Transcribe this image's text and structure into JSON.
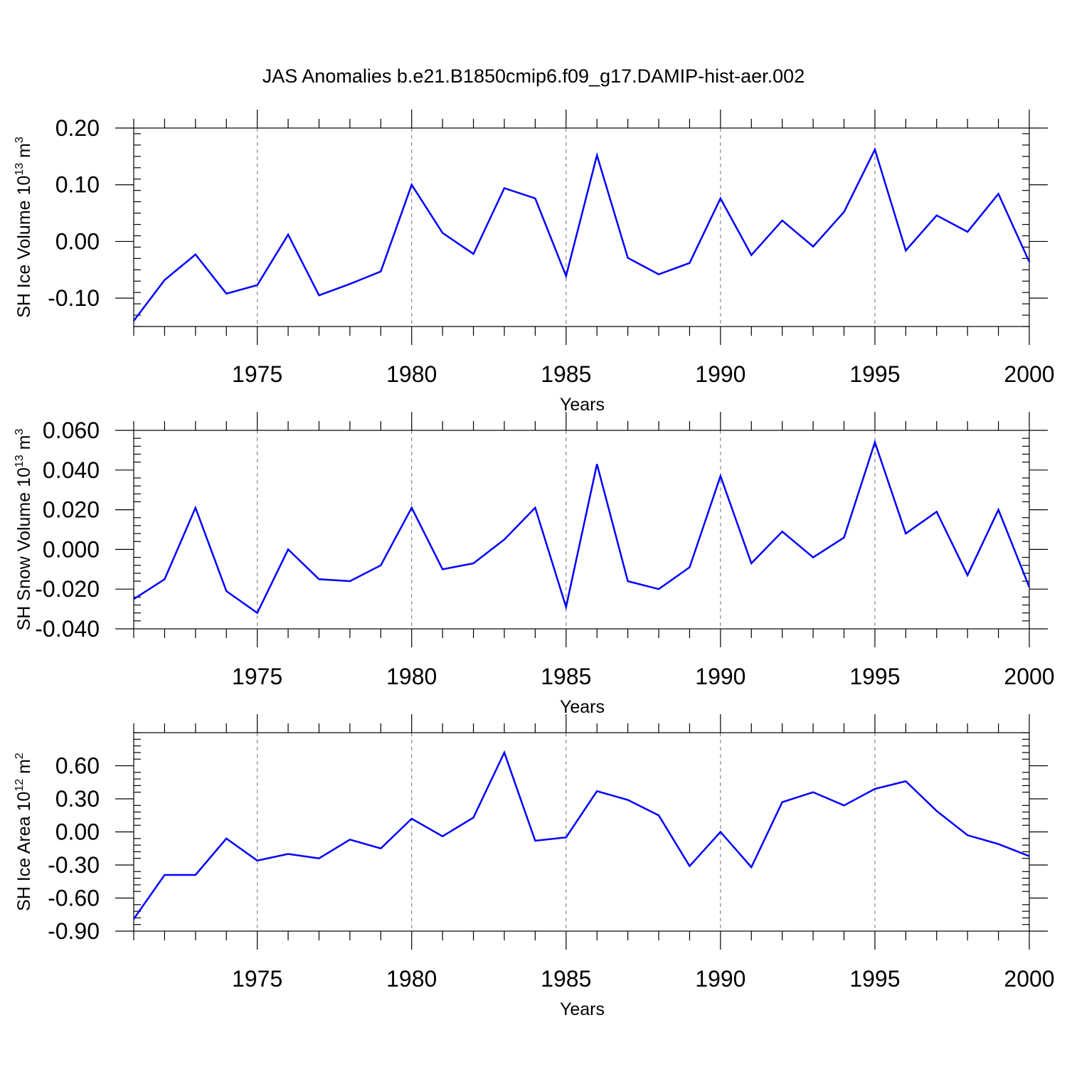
{
  "colors": {
    "series": "#0000ff",
    "axis": "#000000",
    "grid": "#888888",
    "background": "#ffffff"
  },
  "chart_data": [
    {
      "type": "line",
      "title": "JAS Anomalies b.e21.B1850cmip6.f09_g17.DAMIP-hist-aer.002",
      "ylabel": "SH Ice Volume 10",
      "ylabel_exp": "13",
      "ylabel_unit": " m",
      "ylabel_unit_exp": "3",
      "xlabel": "Years",
      "xlim": [
        1971,
        2000
      ],
      "ylim": [
        -0.15,
        0.2
      ],
      "yticks": [
        0.2,
        0.1,
        0.0,
        -0.1
      ],
      "yticklabels": [
        "0.20",
        "0.10",
        "0.00",
        "-0.10"
      ],
      "xticks": [
        1975,
        1980,
        1985,
        1990,
        1995,
        2000
      ],
      "xticklabels": [
        "1975",
        "1980",
        "1985",
        "1990",
        "1995",
        "2000"
      ],
      "grid_x": [
        1975,
        1980,
        1985,
        1990,
        1995
      ],
      "x": [
        1971,
        1972,
        1973,
        1974,
        1975,
        1976,
        1977,
        1978,
        1979,
        1980,
        1981,
        1982,
        1983,
        1984,
        1985,
        1986,
        1987,
        1988,
        1989,
        1990,
        1991,
        1992,
        1993,
        1994,
        1995,
        1996,
        1997,
        1998,
        1999,
        2000
      ],
      "series": [
        {
          "name": "SH Ice Volume",
          "values": [
            -0.14,
            -0.068,
            -0.023,
            -0.092,
            -0.077,
            0.012,
            -0.095,
            -0.075,
            -0.053,
            0.1,
            0.015,
            -0.022,
            0.094,
            0.076,
            -0.061,
            0.152,
            -0.029,
            -0.058,
            -0.038,
            0.076,
            -0.024,
            0.037,
            -0.009,
            0.052,
            0.162,
            -0.016,
            0.046,
            0.017,
            0.084,
            -0.036
          ]
        }
      ]
    },
    {
      "type": "line",
      "ylabel": "SH Snow Volume 10",
      "ylabel_exp": "13",
      "ylabel_unit": " m",
      "ylabel_unit_exp": "3",
      "xlabel": "Years",
      "xlim": [
        1971,
        2000
      ],
      "ylim": [
        -0.04,
        0.06
      ],
      "yticks": [
        0.06,
        0.04,
        0.02,
        0.0,
        -0.02,
        -0.04
      ],
      "yticklabels": [
        "0.060",
        "0.040",
        "0.020",
        "0.000",
        "-0.020",
        "-0.040"
      ],
      "xticks": [
        1975,
        1980,
        1985,
        1990,
        1995,
        2000
      ],
      "xticklabels": [
        "1975",
        "1980",
        "1985",
        "1990",
        "1995",
        "2000"
      ],
      "grid_x": [
        1975,
        1980,
        1985,
        1990,
        1995
      ],
      "x": [
        1971,
        1972,
        1973,
        1974,
        1975,
        1976,
        1977,
        1978,
        1979,
        1980,
        1981,
        1982,
        1983,
        1984,
        1985,
        1986,
        1987,
        1988,
        1989,
        1990,
        1991,
        1992,
        1993,
        1994,
        1995,
        1996,
        1997,
        1998,
        1999,
        2000
      ],
      "series": [
        {
          "name": "SH Snow Volume",
          "values": [
            -0.025,
            -0.015,
            0.021,
            -0.021,
            -0.032,
            0.0,
            -0.015,
            -0.016,
            -0.008,
            0.021,
            -0.01,
            -0.007,
            0.005,
            0.021,
            -0.029,
            0.043,
            -0.016,
            -0.02,
            -0.009,
            0.037,
            -0.007,
            0.009,
            -0.004,
            0.006,
            0.054,
            0.008,
            0.019,
            -0.013,
            0.02,
            -0.019
          ]
        }
      ]
    },
    {
      "type": "line",
      "ylabel": "SH Ice Area 10",
      "ylabel_exp": "12",
      "ylabel_unit": " m",
      "ylabel_unit_exp": "2",
      "xlabel": "Years",
      "xlim": [
        1971,
        2000
      ],
      "ylim": [
        -0.9,
        0.9
      ],
      "yticks": [
        0.6,
        0.3,
        0.0,
        -0.3,
        -0.6,
        -0.9
      ],
      "yticklabels": [
        "0.60",
        "0.30",
        "0.00",
        "-0.30",
        "-0.60",
        "-0.90"
      ],
      "xticks": [
        1975,
        1980,
        1985,
        1990,
        1995,
        2000
      ],
      "xticklabels": [
        "1975",
        "1980",
        "1985",
        "1990",
        "1995",
        "2000"
      ],
      "grid_x": [
        1975,
        1980,
        1985,
        1990,
        1995
      ],
      "x": [
        1971,
        1972,
        1973,
        1974,
        1975,
        1976,
        1977,
        1978,
        1979,
        1980,
        1981,
        1982,
        1983,
        1984,
        1985,
        1986,
        1987,
        1988,
        1989,
        1990,
        1991,
        1992,
        1993,
        1994,
        1995,
        1996,
        1997,
        1998,
        1999,
        2000
      ],
      "series": [
        {
          "name": "SH Ice Area",
          "values": [
            -0.79,
            -0.39,
            -0.39,
            -0.06,
            -0.26,
            -0.2,
            -0.24,
            -0.07,
            -0.15,
            0.12,
            -0.04,
            0.13,
            0.72,
            -0.08,
            -0.05,
            0.37,
            0.29,
            0.15,
            -0.31,
            0.0,
            -0.32,
            0.27,
            0.36,
            0.24,
            0.39,
            0.46,
            0.19,
            -0.03,
            -0.11,
            -0.22
          ]
        }
      ]
    }
  ]
}
